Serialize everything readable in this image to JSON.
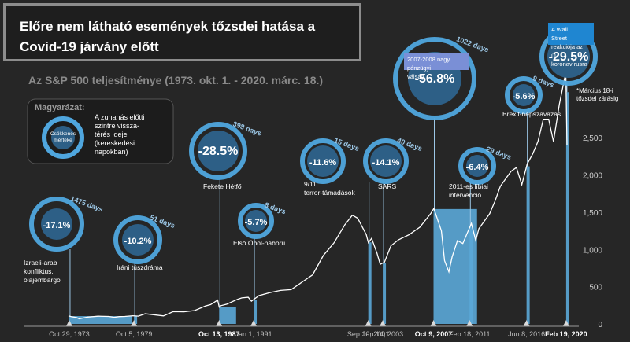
{
  "title": "Előre nem látható események tőzsdei hatása a Covid-19 járvány előtt",
  "subtitle": "Az S&P 500 teljesítménye (1973. okt. 1. - 2020. márc. 18.)",
  "legend": {
    "title": "Magyarázat:",
    "ring_label": "Csökkenés mértéke",
    "text": [
      "A zuhanás előtti",
      "szintre vissza-",
      "térés ideje",
      "(kereskedési",
      "napokban)"
    ]
  },
  "note": [
    "*Március 18-i",
    "tőzsdei zárásig"
  ],
  "colors": {
    "bg": "#262626",
    "bar": "#5ba8d8",
    "bar_dark": "#2a6d98",
    "ring": "#4fa6de",
    "circle": "#2d5f86",
    "line": "#ffffff"
  },
  "chart_data": {
    "type": "line",
    "title": "Előre nem látható események tőzsdei hatása a Covid-19 járvány előtt",
    "subtitle": "Az S&P 500 teljesítménye (1973. okt. 1. - 2020. márc. 18.)",
    "xlabel": "",
    "ylabel": "",
    "xlim": [
      1973.75,
      2020.21
    ],
    "ylim": [
      0,
      3400
    ],
    "yticks": [
      0,
      500,
      1000,
      1500,
      2000,
      2500
    ],
    "ytick_labels": [
      "0",
      "500",
      "1,000",
      "1,500",
      "2,000",
      "2,500"
    ],
    "series": [
      {
        "name": "",
        "x": [
          1973.75,
          1974.0,
          1974.5,
          1974.75,
          1975.5,
          1976.5,
          1977.5,
          1978.0,
          1978.5,
          1979.0,
          1979.75,
          1980.25,
          1980.9,
          1982.6,
          1983.5,
          1984.5,
          1985.5,
          1986.5,
          1987.0,
          1987.65,
          1987.8,
          1987.95,
          1988.5,
          1989.5,
          1989.9,
          1990.5,
          1990.8,
          1991.5,
          1992.5,
          1993.5,
          1994.5,
          1995.5,
          1996.5,
          1997.5,
          1998.5,
          1999.5,
          2000.2,
          2000.7,
          2001.5,
          2001.7,
          2002.0,
          2002.5,
          2002.8,
          2003.2,
          2003.8,
          2004.5,
          2005.5,
          2006.5,
          2007.5,
          2007.8,
          2008.5,
          2008.8,
          2009.2,
          2009.5,
          2010.0,
          2010.5,
          2011.3,
          2011.7,
          2012.0,
          2012.5,
          2013.0,
          2013.5,
          2014.0,
          2014.5,
          2015.0,
          2015.5,
          2016.0,
          2016.5,
          2017.0,
          2017.5,
          2018.0,
          2018.5,
          2018.95,
          2019.5,
          2020.1,
          2020.21
        ],
        "y": [
          108,
          97,
          86,
          70,
          91,
          104,
          100,
          89,
          98,
          100,
          110,
          105,
          136,
          108,
          165,
          163,
          180,
          240,
          260,
          320,
          225,
          245,
          265,
          330,
          350,
          358,
          305,
          380,
          420,
          450,
          460,
          560,
          660,
          920,
          1090,
          1330,
          1460,
          1420,
          1200,
          1090,
          1150,
          950,
          800,
          830,
          1050,
          1130,
          1200,
          1300,
          1480,
          1550,
          1250,
          850,
          700,
          900,
          1120,
          1080,
          1350,
          1120,
          1280,
          1380,
          1480,
          1650,
          1850,
          1950,
          2050,
          2100,
          1870,
          2150,
          2280,
          2450,
          2750,
          2750,
          2450,
          2950,
          3380,
          2400
        ]
      }
    ],
    "events": [
      {
        "label": "Izraeli-arab konfliktus, olajembargó",
        "x": 1973.82,
        "decline": "-17.1%",
        "days": "1475 days",
        "date_label": "Oct 29, 1973",
        "bold": false
      },
      {
        "label": "Iráni túszdráma",
        "x": 1979.85,
        "decline": "-10.2%",
        "days": "51 days",
        "date_label": "Oct 5, 1979",
        "bold": false
      },
      {
        "label": "Fekete Hétfő",
        "x": 1987.79,
        "decline": "-28.5%",
        "days": "398 days",
        "date_label": "Oct 13, 1987",
        "bold": true
      },
      {
        "label": "Első Öböl-háború",
        "x": 1991.0,
        "decline": "-5.7%",
        "days": "8 days",
        "date_label": "Jan 1, 1991",
        "bold": false
      },
      {
        "label": "9/11 terror-támadások",
        "x": 2001.69,
        "decline": "-11.6%",
        "days": "15 days",
        "date_label": "Sep 10, 2001",
        "bold": false
      },
      {
        "label": "SARS",
        "x": 2003.04,
        "decline": "-14.1%",
        "days": "40 days",
        "date_label": "Jan 14, 2003",
        "bold": false
      },
      {
        "label": "2007-2008 nagy pénzügyi válság",
        "x": 2007.77,
        "decline": "-56.8%",
        "days": "1022 days",
        "date_label": "Oct 9, 2007",
        "bold": true
      },
      {
        "label": "2011-es líbiai intervenció",
        "x": 2011.13,
        "decline": "-6.4%",
        "days": "29 days",
        "date_label": "Feb 18, 2011",
        "bold": false
      },
      {
        "label": "Brexit-népszavazás",
        "x": 2016.44,
        "decline": "-5.6%",
        "days": "9 days",
        "date_label": "Jun 8, 2016",
        "bold": false
      },
      {
        "label": "A Wall Street reakciója az új koronavírusra",
        "x": 2020.13,
        "decline": "-29.5%",
        "days": "",
        "date_label": "Feb 19, 2020",
        "bold": true
      }
    ],
    "grid": false,
    "legend_position": "top-left"
  }
}
